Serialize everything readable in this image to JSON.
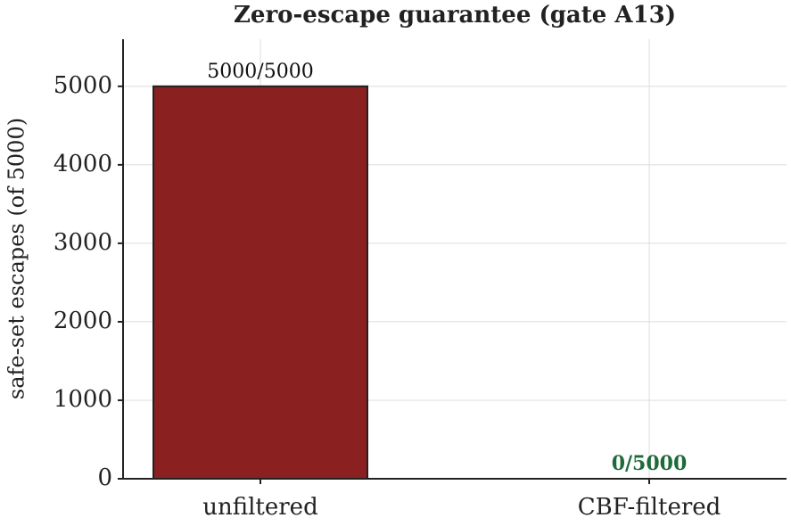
{
  "chart_data": {
    "type": "bar",
    "title": "Zero-escape guarantee (gate A13)",
    "ylabel": "safe-set escapes (of 5000)",
    "categories": [
      "unfiltered",
      "CBF-filtered"
    ],
    "values": [
      5000,
      0
    ],
    "value_labels": [
      "5000/5000",
      "0/5000"
    ],
    "value_label_colors": [
      "#111111",
      "#1e6b3a"
    ],
    "color": "#8b2020",
    "ylim": [
      0,
      5600
    ],
    "yticks": [
      0,
      1000,
      2000,
      3000,
      4000,
      5000
    ],
    "grid": true
  }
}
